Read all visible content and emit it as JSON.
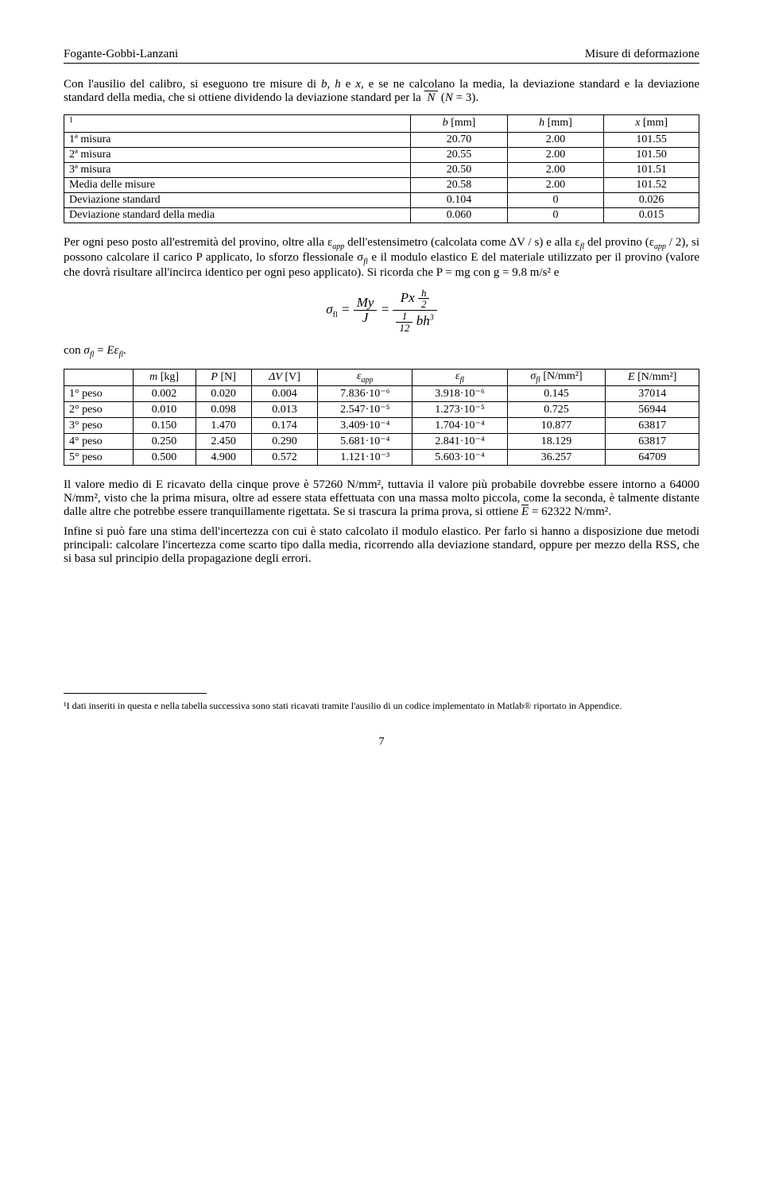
{
  "header": {
    "left": "Fogante-Gobbi-Lanzani",
    "right": "Misure di deformazione"
  },
  "intro": "Con l'ausilio del calibro, si eseguono tre misure di b, h e x, e se ne calcolano la media, la deviazione standard e la deviazione standard della media, che si ottiene dividendo la deviazione standard per la √N (N = 3).",
  "table1": {
    "footref": "1",
    "headers": [
      "b [mm]",
      "h [mm]",
      "x [mm]"
    ],
    "rows": [
      {
        "label": "1ª misura",
        "cells": [
          "20.70",
          "2.00",
          "101.55"
        ]
      },
      {
        "label": "2ª misura",
        "cells": [
          "20.55",
          "2.00",
          "101.50"
        ]
      },
      {
        "label": "3ª misura",
        "cells": [
          "20.50",
          "2.00",
          "101.51"
        ]
      },
      {
        "label": "Media delle misure",
        "cells": [
          "20.58",
          "2.00",
          "101.52"
        ]
      },
      {
        "label": "Deviazione standard",
        "cells": [
          "0.104",
          "0",
          "0.026"
        ]
      },
      {
        "label": "Deviazione standard della media",
        "cells": [
          "0.060",
          "0",
          "0.015"
        ]
      }
    ]
  },
  "para2_a": "Per ogni peso posto all'estremità del provino, oltre alla ε",
  "para2_b": " dell'estensimetro (calcolata come ΔV / s) e alla ε",
  "para2_c": " del provino (ε",
  "para2_d": " / 2), si possono calcolare il carico P applicato, lo sforzo flessionale σ",
  "para2_e": " e il modulo elastico E del materiale utilizzato per il provino (valore che dovrà risultare all'incirca identico per ogni peso applicato). Si ricorda che P = mg con g = 9.8 m/s² e",
  "formula_label": "σ",
  "formula_sub": "fl",
  "con_line": "con σfl = Eεfl.",
  "table2": {
    "headers": [
      "m [kg]",
      "P [N]",
      "ΔV [V]",
      "εapp",
      "εfl",
      "σfl [N/mm²]",
      "E [N/mm²]"
    ],
    "rows": [
      {
        "label": "1° peso",
        "cells": [
          "0.002",
          "0.020",
          "0.004",
          "7.836·10⁻⁶",
          "3.918·10⁻⁶",
          "0.145",
          "37014"
        ]
      },
      {
        "label": "2° peso",
        "cells": [
          "0.010",
          "0.098",
          "0.013",
          "2.547·10⁻⁵",
          "1.273·10⁻⁵",
          "0.725",
          "56944"
        ]
      },
      {
        "label": "3° peso",
        "cells": [
          "0.150",
          "1.470",
          "0.174",
          "3.409·10⁻⁴",
          "1.704·10⁻⁴",
          "10.877",
          "63817"
        ]
      },
      {
        "label": "4° peso",
        "cells": [
          "0.250",
          "2.450",
          "0.290",
          "5.681·10⁻⁴",
          "2.841·10⁻⁴",
          "18.129",
          "63817"
        ]
      },
      {
        "label": "5° peso",
        "cells": [
          "0.500",
          "4.900",
          "0.572",
          "1.121·10⁻³",
          "5.603·10⁻⁴",
          "36.257",
          "64709"
        ]
      }
    ]
  },
  "para3": "Il valore medio di E ricavato della cinque prove è 57260 N/mm², tuttavia il valore più probabile dovrebbe essere intorno a 64000 N/mm², visto che la prima misura, oltre ad essere stata effettuata con una massa molto piccola, come la seconda, è talmente distante dalle altre che potrebbe essere tranquillamente rigettata. Se si trascura la prima prova, si ottiene ",
  "para3_end": " = 62322 N/mm².",
  "para4": "Infine si può fare una stima dell'incertezza con cui è stato calcolato il modulo elastico. Per farlo si hanno a disposizione due metodi principali: calcolare l'incertezza come scarto tipo dalla media, ricorrendo alla deviazione standard, oppure per mezzo della RSS, che si basa sul principio della propagazione degli errori.",
  "footnote": "¹I dati inseriti in questa e nella tabella successiva sono stati ricavati tramite l'ausilio di un codice implementato in Matlab® riportato in Appendice.",
  "pagenum": "7"
}
